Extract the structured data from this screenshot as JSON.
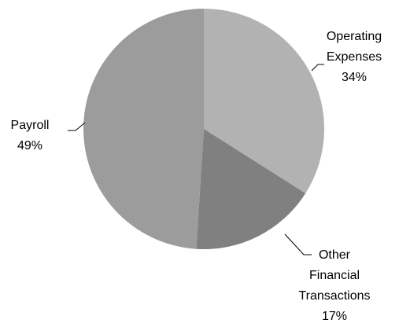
{
  "chart_data": {
    "type": "pie",
    "categories": [
      "Operating Expenses",
      "Other Financial Transactions",
      "Payroll"
    ],
    "values": [
      34,
      17,
      49
    ],
    "value_labels": [
      "34%",
      "17%",
      "49%"
    ],
    "colors": [
      "#b2b2b2",
      "#808080",
      "#9c9c9c"
    ]
  }
}
